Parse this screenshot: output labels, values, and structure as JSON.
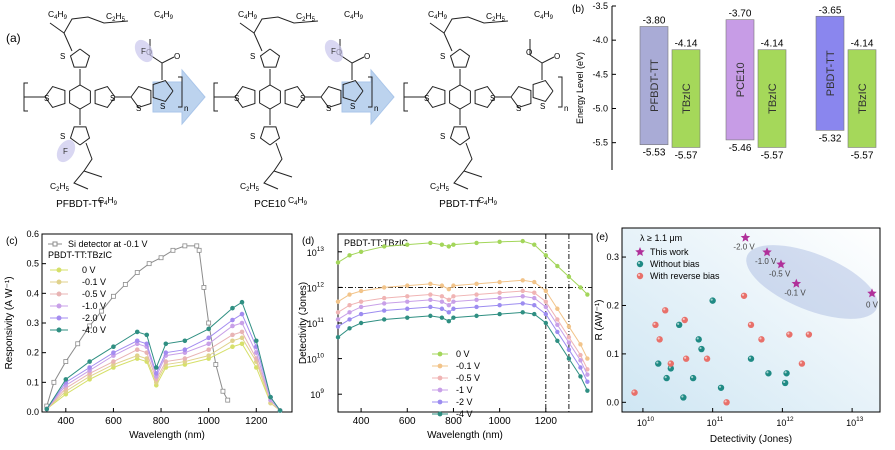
{
  "panel_a": {
    "label": "(a)",
    "molecules": [
      {
        "name": "PFBDT-TT",
        "side_top_1": "C4H9",
        "side_top_2": "C2H5",
        "side_top_3": "C4H9",
        "fluoro": "F",
        "side_bottom_1": "C2H5",
        "side_bottom_2": "C4H9",
        "repeat": "n"
      },
      {
        "name": "PCE10",
        "side_top_1": "C4H9",
        "side_top_2": "C2H5",
        "side_top_3": "C4H9",
        "fluoro": "F",
        "side_bottom_1": "C2H5",
        "side_bottom_2": "C4H9",
        "repeat": "n"
      },
      {
        "name": "PBDT-TT",
        "side_top_1": "C4H9",
        "side_top_2": "C2H5",
        "side_top_3": "C4H9",
        "side_bottom_1": "C2H5",
        "side_bottom_2": "C4H9",
        "repeat": "n"
      }
    ],
    "atoms": {
      "S": "S",
      "O": "O"
    }
  },
  "chart_data": [
    {
      "panel": "(b)",
      "type": "bar",
      "ylabel": "Energy Level (eV)",
      "ylim": [
        -5.9,
        -3.5
      ],
      "yticks": [
        "-3.5",
        "-4.0",
        "-4.5",
        "-5.0",
        "-5.5"
      ],
      "bars": [
        {
          "name": "PFBDT-TT",
          "lumo": -3.8,
          "homo": -5.53,
          "lumo_label": "-3.80",
          "homo_label": "-5.53",
          "color": "#a9abd6"
        },
        {
          "name": "TBzIC",
          "lumo": -4.14,
          "homo": -5.57,
          "lumo_label": "-4.14",
          "homo_label": "-5.57",
          "color": "#a5d85a"
        },
        {
          "name": "PCE10",
          "lumo": -3.7,
          "homo": -5.46,
          "lumo_label": "-3.70",
          "homo_label": "-5.46",
          "color": "#c79ce6"
        },
        {
          "name": "TBzIC",
          "lumo": -4.14,
          "homo": -5.57,
          "lumo_label": "-4.14",
          "homo_label": "-5.57",
          "color": "#a5d85a"
        },
        {
          "name": "PBDT-TT",
          "lumo": -3.65,
          "homo": -5.32,
          "lumo_label": "-3.65",
          "homo_label": "-5.32",
          "color": "#8a86ee"
        },
        {
          "name": "TBzIC",
          "lumo": -4.14,
          "homo": -5.57,
          "lumo_label": "-4.14",
          "homo_label": "-5.57",
          "color": "#a5d85a"
        }
      ]
    },
    {
      "panel": "(c)",
      "type": "line",
      "xlabel": "Wavelength (nm)",
      "ylabel": "Responsivity (A W⁻¹)",
      "xlim": [
        300,
        1350
      ],
      "ylim": [
        0,
        0.6
      ],
      "xticks": [
        "400",
        "600",
        "800",
        "1000",
        "1200"
      ],
      "yticks": [
        "0.0",
        "0.1",
        "0.2",
        "0.3",
        "0.4",
        "0.5",
        "0.6"
      ],
      "legend_title": "PBDT-TT:TBzIC",
      "x": [
        320,
        400,
        500,
        600,
        700,
        740,
        780,
        820,
        900,
        1000,
        1100,
        1140,
        1200,
        1260,
        1300
      ],
      "series": [
        {
          "name": "Si detector at -0.1 V",
          "color": "#8c8c8c",
          "hollow": true,
          "x": [
            320,
            350,
            400,
            450,
            500,
            550,
            600,
            650,
            700,
            750,
            800,
            850,
            900,
            950,
            960,
            980,
            1000,
            1030,
            1060,
            1080
          ],
          "values": [
            0.02,
            0.1,
            0.17,
            0.23,
            0.29,
            0.34,
            0.39,
            0.43,
            0.47,
            0.5,
            0.52,
            0.545,
            0.56,
            0.56,
            0.545,
            0.42,
            0.3,
            0.16,
            0.07,
            0.04
          ]
        },
        {
          "name": "0 V",
          "color": "#d6e06a",
          "values": [
            0.01,
            0.06,
            0.11,
            0.15,
            0.18,
            0.17,
            0.09,
            0.15,
            0.16,
            0.18,
            0.22,
            0.23,
            0.15,
            0.03,
            0.005
          ]
        },
        {
          "name": "-0.1 V",
          "color": "#e0d28c",
          "values": [
            0.01,
            0.07,
            0.12,
            0.16,
            0.19,
            0.18,
            0.1,
            0.16,
            0.17,
            0.19,
            0.24,
            0.25,
            0.17,
            0.03,
            0.005
          ]
        },
        {
          "name": "-0.5 V",
          "color": "#e8b4b4",
          "values": [
            0.01,
            0.08,
            0.13,
            0.17,
            0.21,
            0.2,
            0.11,
            0.17,
            0.18,
            0.21,
            0.26,
            0.27,
            0.18,
            0.04,
            0.005
          ]
        },
        {
          "name": "-1.0 V",
          "color": "#c8a0e8",
          "values": [
            0.01,
            0.09,
            0.14,
            0.19,
            0.23,
            0.22,
            0.12,
            0.19,
            0.2,
            0.23,
            0.29,
            0.3,
            0.2,
            0.04,
            0.005
          ]
        },
        {
          "name": "-2.0 V",
          "color": "#a48cf0",
          "values": [
            0.01,
            0.1,
            0.15,
            0.2,
            0.24,
            0.23,
            0.13,
            0.2,
            0.21,
            0.25,
            0.31,
            0.33,
            0.22,
            0.05,
            0.005
          ]
        },
        {
          "name": "-4.0 V",
          "color": "#2f8f82",
          "values": [
            0.01,
            0.11,
            0.17,
            0.22,
            0.27,
            0.26,
            0.15,
            0.23,
            0.24,
            0.28,
            0.35,
            0.37,
            0.24,
            0.05,
            0.005
          ]
        }
      ]
    },
    {
      "panel": "(d)",
      "type": "line",
      "xlabel": "Wavelength (nm)",
      "ylabel": "Detectivity (Jones)",
      "log_y": true,
      "xlim": [
        300,
        1400
      ],
      "ylim_exp": [
        8.5,
        13.5
      ],
      "xticks": [
        "400",
        "600",
        "800",
        "1000",
        "1200"
      ],
      "yticks": [
        {
          "base": "10",
          "exp": "13",
          "v": 13
        },
        {
          "base": "10",
          "exp": "12",
          "v": 12
        },
        {
          "base": "10",
          "exp": "11",
          "v": 11
        },
        {
          "base": "10",
          "exp": "10",
          "v": 10
        },
        {
          "base": "10",
          "exp": "9",
          "v": 9
        }
      ],
      "title": "PBDT-TT:TBzIC",
      "vlines": [
        1200,
        1300
      ],
      "hline_exp": 12,
      "x": [
        300,
        350,
        400,
        500,
        600,
        700,
        750,
        780,
        800,
        900,
        1000,
        1100,
        1150,
        1200,
        1250,
        1300,
        1350,
        1380
      ],
      "series": [
        {
          "name": "0 V",
          "color": "#a3d65a",
          "values_exp": [
            12.7,
            12.9,
            13.0,
            13.15,
            13.2,
            13.25,
            13.2,
            13.15,
            13.2,
            13.25,
            13.28,
            13.3,
            13.2,
            12.9,
            12.6,
            12.3,
            12.0,
            11.8
          ]
        },
        {
          "name": "-0.1 V",
          "color": "#f2c48a",
          "values_exp": [
            11.6,
            11.8,
            11.9,
            12.0,
            12.05,
            12.1,
            12.05,
            11.95,
            12.05,
            12.1,
            12.15,
            12.2,
            12.15,
            11.9,
            11.4,
            10.9,
            10.4,
            10.0
          ]
        },
        {
          "name": "-0.5 V",
          "color": "#f0b4b4",
          "values_exp": [
            11.3,
            11.5,
            11.6,
            11.7,
            11.75,
            11.8,
            11.75,
            11.65,
            11.75,
            11.8,
            11.85,
            11.9,
            11.85,
            11.6,
            11.1,
            10.6,
            10.1,
            9.7
          ]
        },
        {
          "name": "-1 V",
          "color": "#c8a0e8",
          "values_exp": [
            11.1,
            11.3,
            11.45,
            11.55,
            11.6,
            11.65,
            11.6,
            11.5,
            11.6,
            11.65,
            11.7,
            11.75,
            11.7,
            11.45,
            10.95,
            10.45,
            9.95,
            9.55
          ]
        },
        {
          "name": "-2 V",
          "color": "#9c8cf0",
          "values_exp": [
            10.9,
            11.1,
            11.25,
            11.35,
            11.4,
            11.45,
            11.4,
            11.3,
            11.4,
            11.45,
            11.5,
            11.55,
            11.5,
            11.25,
            10.75,
            10.25,
            9.75,
            9.35
          ]
        },
        {
          "name": "-4 V",
          "color": "#2f8f82",
          "values_exp": [
            10.6,
            10.85,
            11.0,
            11.1,
            11.15,
            11.2,
            11.15,
            11.05,
            11.15,
            11.2,
            11.25,
            11.3,
            11.25,
            11.0,
            10.5,
            10.0,
            9.5,
            9.1
          ]
        }
      ]
    },
    {
      "panel": "(e)",
      "type": "scatter",
      "xlabel": "Detectivity (Jones)",
      "ylabel": "R (AW⁻¹)",
      "log_x": true,
      "xlim_exp": [
        9.7,
        13.4
      ],
      "ylim": [
        -0.02,
        0.36
      ],
      "xticks": [
        {
          "base": "10",
          "exp": "10",
          "v": 10
        },
        {
          "base": "10",
          "exp": "11",
          "v": 11
        },
        {
          "base": "10",
          "exp": "12",
          "v": 12
        },
        {
          "base": "10",
          "exp": "13",
          "v": 13
        }
      ],
      "yticks": [
        "0.0",
        "0.1",
        "0.2",
        "0.3"
      ],
      "header": "λ ≥ 1.1 μm",
      "legend": [
        {
          "name": "This work",
          "color": "#b0309a",
          "shape": "star"
        },
        {
          "name": "Without bias",
          "color": "#1f8a84",
          "shape": "circle"
        },
        {
          "name": "With reverse bias",
          "color": "#e8706a",
          "shape": "circle"
        }
      ],
      "this_work": [
        {
          "x_exp": 11.47,
          "y": 0.34,
          "label": "-2.0 V"
        },
        {
          "x_exp": 11.78,
          "y": 0.31,
          "label": "-1.0 V"
        },
        {
          "x_exp": 11.98,
          "y": 0.285,
          "label": "-0.5 V"
        },
        {
          "x_exp": 12.2,
          "y": 0.245,
          "label": "-0.1 V"
        },
        {
          "x_exp": 13.45,
          "y": 0.225,
          "label": "0 V"
        }
      ],
      "without_bias": [
        [
          10.22,
          0.08
        ],
        [
          10.34,
          0.05
        ],
        [
          10.52,
          0.16
        ],
        [
          10.58,
          0.01
        ],
        [
          10.72,
          0.05
        ],
        [
          10.8,
          0.13
        ],
        [
          10.84,
          0.11
        ],
        [
          11.0,
          0.21
        ],
        [
          11.12,
          0.03
        ],
        [
          11.55,
          0.09
        ],
        [
          11.8,
          0.06
        ],
        [
          12.04,
          0.04
        ],
        [
          12.06,
          0.06
        ],
        [
          10.4,
          0.07
        ]
      ],
      "with_reverse_bias": [
        [
          9.88,
          0.02
        ],
        [
          10.18,
          0.16
        ],
        [
          10.24,
          0.13
        ],
        [
          10.32,
          0.19
        ],
        [
          10.4,
          0.08
        ],
        [
          10.6,
          0.17
        ],
        [
          10.62,
          0.09
        ],
        [
          10.92,
          0.09
        ],
        [
          11.2,
          0.0
        ],
        [
          11.45,
          0.22
        ],
        [
          11.55,
          0.16
        ],
        [
          11.7,
          0.13
        ],
        [
          12.1,
          0.14
        ],
        [
          12.28,
          0.08
        ],
        [
          12.38,
          0.14
        ]
      ]
    }
  ]
}
